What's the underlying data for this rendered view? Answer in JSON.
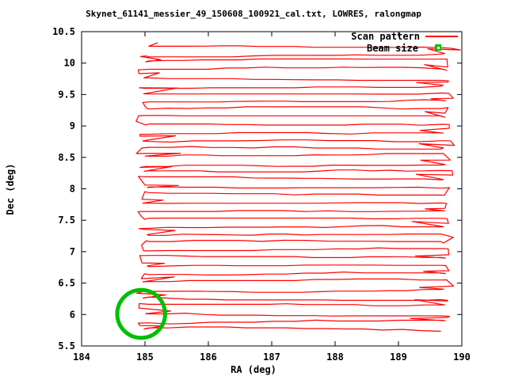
{
  "chart_data": {
    "type": "line",
    "title": "Skynet_61141_messier_49_150608_100921_cal.txt, LOWRES, ralongmap",
    "xlabel": "RA (deg)",
    "ylabel": "Dec (deg)",
    "xlim": [
      184,
      190
    ],
    "ylim": [
      5.5,
      10.5
    ],
    "xticks": [
      184,
      185,
      186,
      187,
      188,
      189,
      190
    ],
    "yticks": [
      5.5,
      6,
      6.5,
      7,
      7.5,
      8,
      8.5,
      9,
      9.5,
      10,
      10.5
    ],
    "grid": false,
    "background": "#ffffff",
    "border_color": "#000000",
    "legend_position": "top-right-inside",
    "series": [
      {
        "name": "Scan pattern",
        "kind": "serpentine-raster-scan",
        "color": "#ff0000",
        "ra_start": 185.06,
        "ra_end": 189.67,
        "dec_top": 10.27,
        "dec_bottom": 5.77,
        "rows": 37,
        "row_spacing_deg": 0.125,
        "wobble_deg": 0.045,
        "turnaround_overshoot_deg": 0.2,
        "seed": 42
      },
      {
        "name": "Beam size",
        "kind": "circle-marker",
        "color": "#00bf00",
        "center_ra": 184.94,
        "center_dec": 6.01,
        "radius_deg": 0.38
      }
    ]
  }
}
